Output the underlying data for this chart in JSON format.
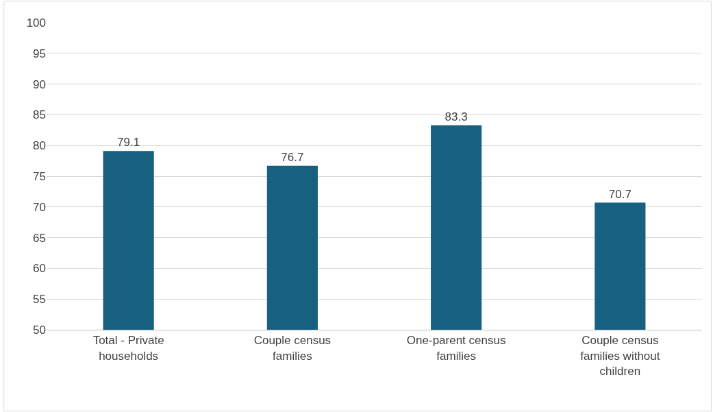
{
  "chart_data": {
    "type": "bar",
    "categories": [
      "Total - Private households",
      "Couple census families",
      "One-parent census families",
      "Couple census families without children"
    ],
    "values": [
      79.1,
      76.7,
      83.3,
      70.7
    ],
    "color": "#17607f",
    "ylim": [
      50,
      100
    ],
    "yticks": [
      50,
      55,
      60,
      65,
      70,
      75,
      80,
      85,
      90,
      95,
      100
    ],
    "grid": "y",
    "data_labels": true
  }
}
